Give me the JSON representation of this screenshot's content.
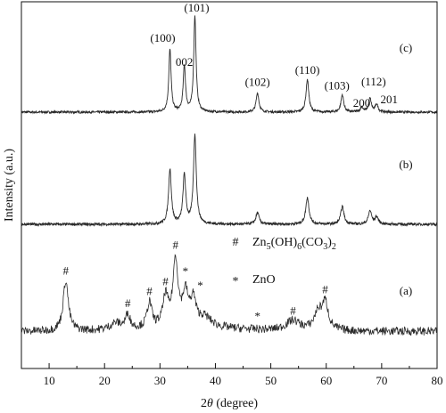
{
  "chart_data": {
    "type": "line",
    "xlabel": "2θ (degree)",
    "ylabel": "Intensity (a.u.)",
    "xlim": [
      5,
      80
    ],
    "xticks": [
      10,
      20,
      30,
      40,
      50,
      60,
      70,
      80
    ],
    "y_tick_labels": "none",
    "grid": false,
    "legend_position": "center",
    "legend": [
      {
        "symbol": "#",
        "formula": {
          "pre": "Zn",
          "s1": "5",
          "mid1": "(OH)",
          "s2": "6",
          "mid2": "(CO",
          "s3": "3",
          "mid3": ")",
          "s4": "2"
        }
      },
      {
        "symbol": "*",
        "text": "ZnO"
      }
    ],
    "series": [
      {
        "name": "(c)",
        "baseline": 0,
        "noise": 0.012,
        "peaks": [
          {
            "x": 31.8,
            "h": 0.65,
            "w": 0.25
          },
          {
            "x": 34.4,
            "h": 0.48,
            "w": 0.25
          },
          {
            "x": 36.3,
            "h": 1.0,
            "w": 0.25
          },
          {
            "x": 47.6,
            "h": 0.2,
            "w": 0.3
          },
          {
            "x": 56.6,
            "h": 0.34,
            "w": 0.3
          },
          {
            "x": 62.9,
            "h": 0.18,
            "w": 0.3
          },
          {
            "x": 66.4,
            "h": 0.05,
            "w": 0.3
          },
          {
            "x": 67.9,
            "h": 0.14,
            "w": 0.3
          },
          {
            "x": 69.1,
            "h": 0.08,
            "w": 0.3
          }
        ]
      },
      {
        "name": "(b)",
        "baseline": 0,
        "noise": 0.015,
        "peaks": [
          {
            "x": 31.8,
            "h": 0.62,
            "w": 0.3
          },
          {
            "x": 34.4,
            "h": 0.55,
            "w": 0.3
          },
          {
            "x": 36.3,
            "h": 1.0,
            "w": 0.3
          },
          {
            "x": 47.6,
            "h": 0.13,
            "w": 0.35
          },
          {
            "x": 56.6,
            "h": 0.3,
            "w": 0.35
          },
          {
            "x": 62.9,
            "h": 0.2,
            "w": 0.35
          },
          {
            "x": 67.9,
            "h": 0.15,
            "w": 0.35
          },
          {
            "x": 69.1,
            "h": 0.08,
            "w": 0.35
          }
        ]
      },
      {
        "name": "(a)",
        "baseline": 0.05,
        "noise": 0.05,
        "peaks": [
          {
            "x": 13.0,
            "h": 0.6,
            "w": 0.55
          },
          {
            "x": 22.0,
            "h": 0.08,
            "w": 1.2
          },
          {
            "x": 24.2,
            "h": 0.17,
            "w": 0.5
          },
          {
            "x": 28.1,
            "h": 0.3,
            "w": 0.5
          },
          {
            "x": 31.0,
            "h": 0.35,
            "w": 0.55
          },
          {
            "x": 32.8,
            "h": 0.78,
            "w": 0.55
          },
          {
            "x": 34.6,
            "h": 0.38,
            "w": 0.6
          },
          {
            "x": 36.0,
            "h": 0.3,
            "w": 0.55
          },
          {
            "x": 38.0,
            "h": 0.12,
            "w": 1.5
          },
          {
            "x": 54.0,
            "h": 0.12,
            "w": 1.5
          },
          {
            "x": 58.5,
            "h": 0.2,
            "w": 0.8
          },
          {
            "x": 59.8,
            "h": 0.32,
            "w": 0.7
          }
        ]
      }
    ],
    "annotations": [
      {
        "series": "(c)",
        "x": 31.8,
        "text": "(100)"
      },
      {
        "series": "(c)",
        "x": 34.4,
        "text": "002"
      },
      {
        "series": "(c)",
        "x": 36.3,
        "text": "(101)"
      },
      {
        "series": "(c)",
        "x": 47.6,
        "text": "(102)"
      },
      {
        "series": "(c)",
        "x": 56.6,
        "text": "(110)"
      },
      {
        "series": "(c)",
        "x": 62.9,
        "text": "(103)"
      },
      {
        "series": "(c)",
        "x": 66.4,
        "text": "200"
      },
      {
        "series": "(c)",
        "x": 67.9,
        "text": "(112)"
      },
      {
        "series": "(c)",
        "x": 69.1,
        "text": "201"
      },
      {
        "series": "(a)",
        "x": 13.0,
        "text": "#"
      },
      {
        "series": "(a)",
        "x": 24.2,
        "text": "#"
      },
      {
        "series": "(a)",
        "x": 28.1,
        "text": "#"
      },
      {
        "series": "(a)",
        "x": 31.0,
        "text": "#"
      },
      {
        "series": "(a)",
        "x": 32.8,
        "text": "#"
      },
      {
        "series": "(a)",
        "x": 34.6,
        "text": "*"
      },
      {
        "series": "(a)",
        "x": 36.3,
        "text": "*"
      },
      {
        "series": "(a)",
        "x": 47.6,
        "text": "*"
      },
      {
        "series": "(a)",
        "x": 54.0,
        "text": "#"
      },
      {
        "series": "(a)",
        "x": 59.8,
        "text": "#"
      }
    ]
  }
}
